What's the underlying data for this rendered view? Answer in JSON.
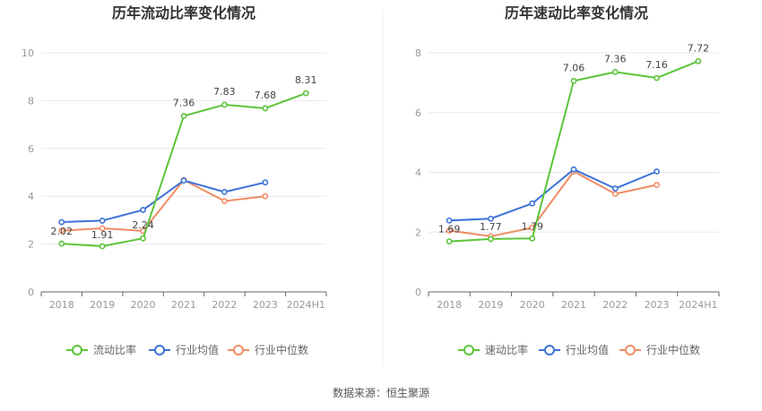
{
  "source": "数据来源：恒生聚源",
  "colors": {
    "green": "#5cc43a",
    "blue": "#3b73d6",
    "orange": "#f08c64",
    "grid": "#e6e8ef",
    "axis": "#666666"
  },
  "chart_data": [
    {
      "type": "line",
      "title": "历年流动比率变化情况",
      "categories": [
        "2018",
        "2019",
        "2020",
        "2021",
        "2022",
        "2023",
        "2024H1"
      ],
      "ylim": [
        0,
        10
      ],
      "yticks": [
        "0",
        "2",
        "4",
        "6",
        "8",
        "10"
      ],
      "grid": true,
      "legend_position": "bottom",
      "series": [
        {
          "name": "流动比率",
          "color": "#5cc43a",
          "values": [
            2.02,
            1.91,
            2.24,
            7.36,
            7.83,
            7.68,
            8.31
          ],
          "labels": [
            "2.02",
            "1.91",
            "2.24",
            "7.36",
            "7.83",
            "7.68",
            "8.31"
          ]
        },
        {
          "name": "行业均值",
          "color": "#3b73d6",
          "values": [
            2.92,
            2.98,
            3.43,
            4.66,
            4.18,
            4.58,
            null
          ]
        },
        {
          "name": "行业中位数",
          "color": "#f08c64",
          "values": [
            2.56,
            2.66,
            2.55,
            4.68,
            3.8,
            4.0,
            null
          ]
        }
      ]
    },
    {
      "type": "line",
      "title": "历年速动比率变化情况",
      "categories": [
        "2018",
        "2019",
        "2020",
        "2021",
        "2022",
        "2023",
        "2024H1"
      ],
      "ylim": [
        0,
        8
      ],
      "yticks": [
        "0",
        "2",
        "4",
        "6",
        "8"
      ],
      "grid": true,
      "legend_position": "bottom",
      "series": [
        {
          "name": "速动比率",
          "color": "#5cc43a",
          "values": [
            1.69,
            1.77,
            1.79,
            7.06,
            7.36,
            7.16,
            7.72
          ],
          "labels": [
            "1.69",
            "1.77",
            "1.79",
            "7.06",
            "7.36",
            "7.16",
            "7.72"
          ]
        },
        {
          "name": "行业均值",
          "color": "#3b73d6",
          "values": [
            2.39,
            2.45,
            2.96,
            4.1,
            3.46,
            4.03,
            null
          ]
        },
        {
          "name": "行业中位数",
          "color": "#f08c64",
          "values": [
            2.05,
            1.86,
            2.15,
            4.03,
            3.28,
            3.58,
            null
          ]
        }
      ]
    }
  ]
}
